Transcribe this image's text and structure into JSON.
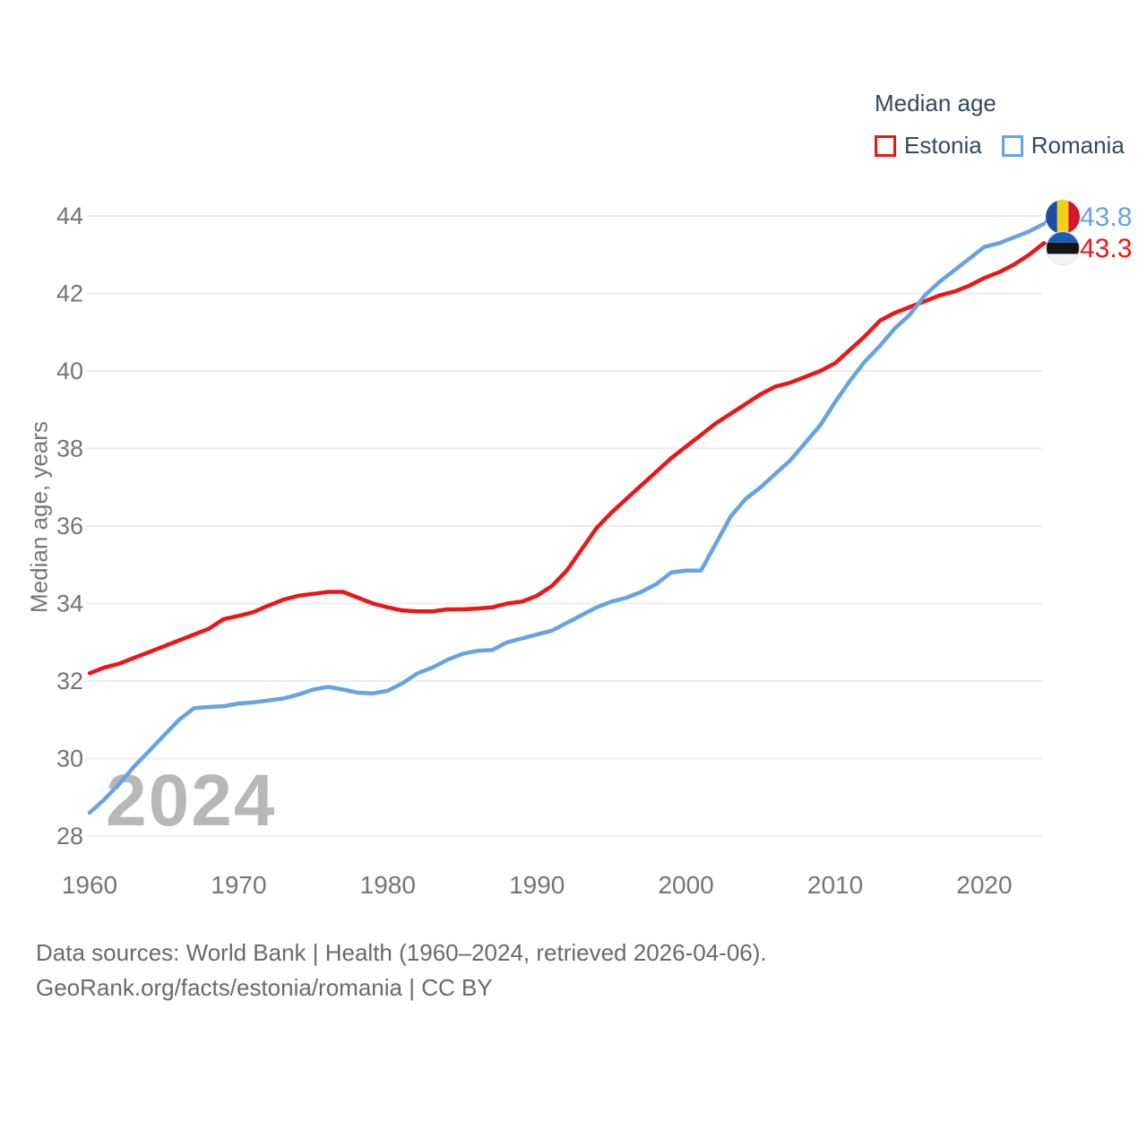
{
  "legend": {
    "title": "Median age",
    "items": [
      {
        "label": "Estonia",
        "color": "#ed1515"
      },
      {
        "label": "Romania",
        "color": "#66a3e3"
      }
    ]
  },
  "y_axis": {
    "title": "Median age, years"
  },
  "watermark": "2024",
  "end_labels": [
    {
      "series": "Romania",
      "value": "43.8",
      "flag": "romania-flag-icon"
    },
    {
      "series": "Estonia",
      "value": "43.3",
      "flag": "estonia-flag-icon"
    }
  ],
  "footer": {
    "line1": "Data sources: World Bank | Health (1960–2024, retrieved 2026-04-06).",
    "line2": "GeoRank.org/facts/estonia/romania | CC BY"
  },
  "chart_data": {
    "type": "line",
    "title": "Median age",
    "xlabel": "",
    "ylabel": "Median age, years",
    "ylim": [
      28,
      44
    ],
    "xlim": [
      1960,
      2024
    ],
    "y_ticks": [
      28,
      30,
      32,
      34,
      36,
      38,
      40,
      42,
      44
    ],
    "x_ticks": [
      1960,
      1970,
      1980,
      1990,
      2000,
      2010,
      2020
    ],
    "grid": "horizontal",
    "legend_position": "top-right",
    "x": [
      1960,
      1961,
      1962,
      1963,
      1964,
      1965,
      1966,
      1967,
      1968,
      1969,
      1970,
      1971,
      1972,
      1973,
      1974,
      1975,
      1976,
      1977,
      1978,
      1979,
      1980,
      1981,
      1982,
      1983,
      1984,
      1985,
      1986,
      1987,
      1988,
      1989,
      1990,
      1991,
      1992,
      1993,
      1994,
      1995,
      1996,
      1997,
      1998,
      1999,
      2000,
      2001,
      2002,
      2003,
      2004,
      2005,
      2006,
      2007,
      2008,
      2009,
      2010,
      2011,
      2012,
      2013,
      2014,
      2015,
      2016,
      2017,
      2018,
      2019,
      2020,
      2021,
      2022,
      2023,
      2024
    ],
    "series": [
      {
        "name": "Estonia",
        "color": "#ed1515",
        "end_value": 43.3,
        "values": [
          32.2,
          32.35,
          32.45,
          32.6,
          32.75,
          32.9,
          33.05,
          33.2,
          33.35,
          33.6,
          33.68,
          33.78,
          33.95,
          34.1,
          34.2,
          34.25,
          34.3,
          34.3,
          34.15,
          34.0,
          33.9,
          33.82,
          33.8,
          33.8,
          33.85,
          33.85,
          33.87,
          33.9,
          34.0,
          34.05,
          34.2,
          34.45,
          34.85,
          35.4,
          35.95,
          36.35,
          36.7,
          37.05,
          37.4,
          37.75,
          38.05,
          38.35,
          38.65,
          38.9,
          39.15,
          39.4,
          39.6,
          39.7,
          39.85,
          40.0,
          40.2,
          40.55,
          40.9,
          41.3,
          41.5,
          41.65,
          41.8,
          41.95,
          42.05,
          42.2,
          42.4,
          42.55,
          42.75,
          43.0,
          43.3
        ]
      },
      {
        "name": "Romania",
        "color": "#66a3e3",
        "end_value": 43.8,
        "values": [
          28.6,
          28.95,
          29.35,
          29.8,
          30.2,
          30.6,
          31.0,
          31.3,
          31.33,
          31.35,
          31.42,
          31.45,
          31.5,
          31.55,
          31.65,
          31.78,
          31.85,
          31.78,
          31.7,
          31.68,
          31.75,
          31.95,
          32.2,
          32.35,
          32.55,
          32.7,
          32.78,
          32.8,
          33.0,
          33.1,
          33.2,
          33.3,
          33.5,
          33.7,
          33.9,
          34.05,
          34.15,
          34.3,
          34.5,
          34.8,
          34.85,
          34.85,
          35.55,
          36.25,
          36.7,
          37.0,
          37.35,
          37.7,
          38.15,
          38.6,
          39.2,
          39.75,
          40.25,
          40.65,
          41.1,
          41.45,
          41.95,
          42.3,
          42.6,
          42.9,
          43.2,
          43.3,
          43.45,
          43.6,
          43.8
        ]
      }
    ]
  }
}
